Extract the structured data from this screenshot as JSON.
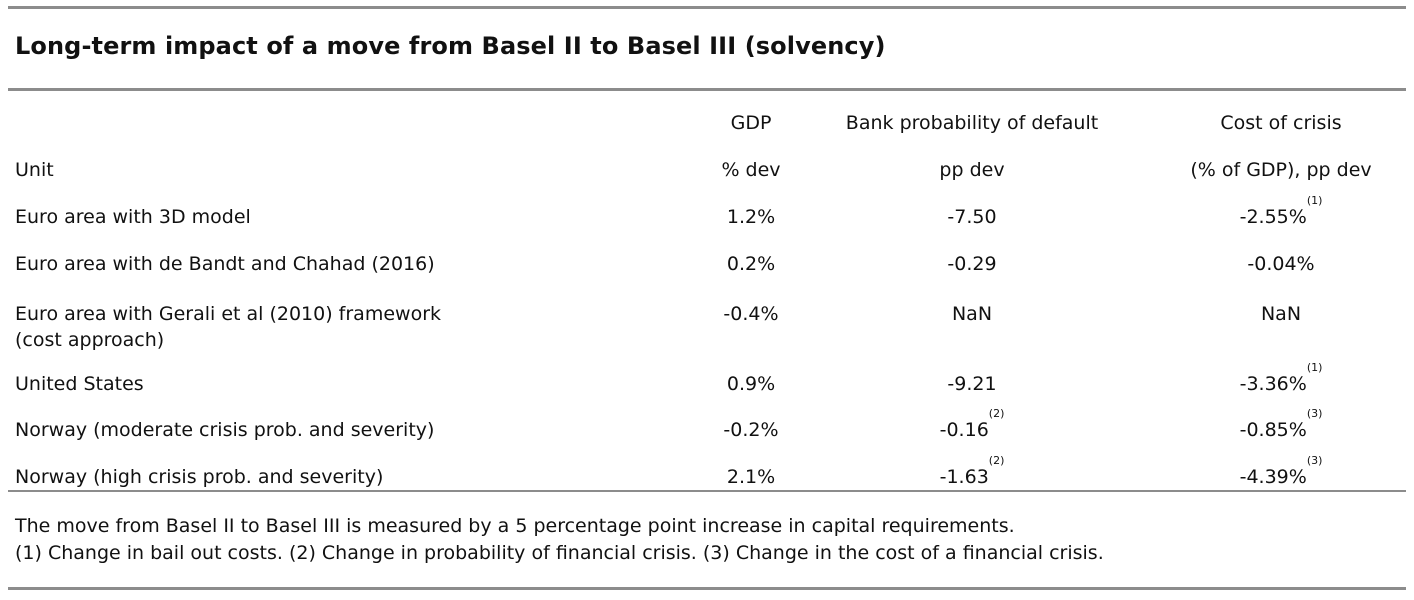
{
  "title": "Long-term impact of a move from Basel II to Basel III (solvency)",
  "table": {
    "headers": {
      "gdp": "GDP",
      "pd": "Bank probability of default",
      "cost": "Cost of crisis"
    },
    "unit_row": {
      "label": "Unit",
      "gdp": "% dev",
      "pd": "pp dev",
      "cost": "(% of GDP), pp dev"
    },
    "rows": [
      {
        "label_line1": "Euro area with 3D model",
        "label_line2": "",
        "gdp": "1.2%",
        "pd": "-7.50",
        "pd_note": "",
        "cost": "-2.55%",
        "cost_note": "(1)"
      },
      {
        "label_line1": "Euro area with de Bandt and Chahad (2016)",
        "label_line2": "",
        "gdp": "0.2%",
        "pd": "-0.29",
        "pd_note": "",
        "cost": "-0.04%",
        "cost_note": ""
      },
      {
        "label_line1": "Euro area with Gerali et al (2010) framework",
        "label_line2": "(cost approach)",
        "gdp": "-0.4%",
        "pd": "NaN",
        "pd_note": "",
        "cost": "NaN",
        "cost_note": ""
      },
      {
        "label_line1": "United States",
        "label_line2": "",
        "gdp": "0.9%",
        "pd": "-9.21",
        "pd_note": "",
        "cost": "-3.36%",
        "cost_note": "(1)"
      },
      {
        "label_line1": "Norway (moderate crisis prob. and severity)",
        "label_line2": "",
        "gdp": "-0.2%",
        "pd": "-0.16",
        "pd_note": "(2)",
        "cost": "-0.85%",
        "cost_note": "(3)"
      },
      {
        "label_line1": "Norway (high crisis prob. and severity)",
        "label_line2": "",
        "gdp": "2.1%",
        "pd": "-1.63",
        "pd_note": "(2)",
        "cost": "-4.39%",
        "cost_note": "(3)"
      }
    ]
  },
  "notes": {
    "line1": "The move from Basel II to Basel III is measured by a 5 percentage point increase in capital requirements.",
    "line2": "(1) Change in bail out costs. (2) Change in probability of financial crisis. (3) Change in the cost of a financial crisis."
  }
}
